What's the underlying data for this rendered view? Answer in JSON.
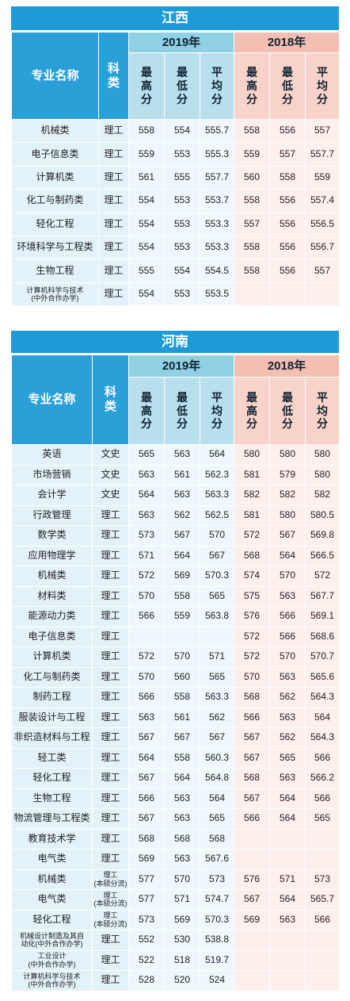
{
  "sections": [
    {
      "title": "江西",
      "header": {
        "name": "专业名称",
        "category": "科类",
        "years": [
          "2019年",
          "2018年"
        ],
        "stats": [
          "最高分",
          "最低分",
          "平均分"
        ]
      },
      "rows": [
        [
          "机械类",
          "理工",
          558,
          554,
          555.7,
          558,
          556,
          557
        ],
        [
          "电子信息类",
          "理工",
          559,
          553,
          555.3,
          559,
          557,
          557.7
        ],
        [
          "计算机类",
          "理工",
          561,
          555,
          557.7,
          560,
          558,
          559
        ],
        [
          "化工与制药类",
          "理工",
          554,
          553,
          553.7,
          558,
          556,
          557.4
        ],
        [
          "轻化工程",
          "理工",
          554,
          553,
          553.3,
          557,
          556,
          556.5
        ],
        [
          "环境科学与工程类",
          "理工",
          554,
          553,
          553.3,
          558,
          556,
          556.7
        ],
        [
          "生物工程",
          "理工",
          555,
          554,
          554.5,
          558,
          556,
          557
        ],
        [
          "计算机科学与技术\n(中外合作办学)",
          "理工",
          554,
          553,
          553.5,
          null,
          null,
          null
        ]
      ]
    },
    {
      "title": "河南",
      "header": {
        "name": "专业名称",
        "category": "科类",
        "years": [
          "2019年",
          "2018年"
        ],
        "stats": [
          "最高分",
          "最低分",
          "平均分"
        ]
      },
      "rows": [
        [
          "英语",
          "文史",
          565,
          563,
          564,
          580,
          580,
          580
        ],
        [
          "市场营销",
          "文史",
          563,
          561,
          562.3,
          581,
          579,
          580
        ],
        [
          "会计学",
          "文史",
          564,
          563,
          563.3,
          582,
          582,
          582
        ],
        [
          "行政管理",
          "理工",
          563,
          562,
          562.5,
          581,
          580,
          580.5
        ],
        [
          "数学类",
          "理工",
          573,
          567,
          570,
          572,
          567,
          569.8
        ],
        [
          "应用物理学",
          "理工",
          571,
          564,
          567,
          568,
          564,
          566.5
        ],
        [
          "机械类",
          "理工",
          572,
          569,
          570.3,
          574,
          570,
          572
        ],
        [
          "材料类",
          "理工",
          570,
          558,
          565,
          575,
          563,
          567.7
        ],
        [
          "能源动力类",
          "理工",
          566,
          559,
          563.8,
          576,
          566,
          569.1
        ],
        [
          "电子信息类",
          "理工",
          null,
          null,
          null,
          572,
          566,
          568.6
        ],
        [
          "计算机类",
          "理工",
          572,
          570,
          571,
          572,
          570,
          570.7
        ],
        [
          "化工与制药类",
          "理工",
          570,
          560,
          565,
          570,
          563,
          565.6
        ],
        [
          "制药工程",
          "理工",
          566,
          558,
          563.3,
          568,
          562,
          564.3
        ],
        [
          "服装设计与工程",
          "理工",
          563,
          561,
          562,
          566,
          563,
          564
        ],
        [
          "非织造材料与工程",
          "理工",
          567,
          567,
          567,
          567,
          562,
          564.3
        ],
        [
          "轻工类",
          "理工",
          564,
          558,
          560.3,
          567,
          565,
          566
        ],
        [
          "轻化工程",
          "理工",
          567,
          564,
          564.8,
          568,
          563,
          566.2
        ],
        [
          "生物工程",
          "理工",
          566,
          563,
          564,
          567,
          564,
          566
        ],
        [
          "物流管理与工程类",
          "理工",
          567,
          563,
          565,
          566,
          564,
          565
        ],
        [
          "教育技术学",
          "理工",
          568,
          568,
          568,
          null,
          null,
          null
        ],
        [
          "电气类",
          "理工",
          569,
          563,
          567.6,
          null,
          null,
          null
        ],
        [
          "机械类",
          "理工\n(本硕分流)",
          577,
          570,
          573,
          576,
          571,
          573
        ],
        [
          "电气类",
          "理工\n(本硕分流)",
          577,
          571,
          574.7,
          567,
          564,
          565.7
        ],
        [
          "轻化工程",
          "理工\n(本硕分流)",
          573,
          569,
          570.3,
          569,
          563,
          566
        ],
        [
          "机械设计制造及其自\n动化(中外合作办学)",
          "理工",
          552,
          530,
          538.8,
          null,
          null,
          null
        ],
        [
          "工业设计\n(中外合作办学)",
          "理工",
          522,
          518,
          519.7,
          null,
          null,
          null
        ],
        [
          "计算机科学与技术\n(中外合作办学)",
          "理工",
          528,
          520,
          524,
          null,
          null,
          null
        ]
      ]
    }
  ]
}
